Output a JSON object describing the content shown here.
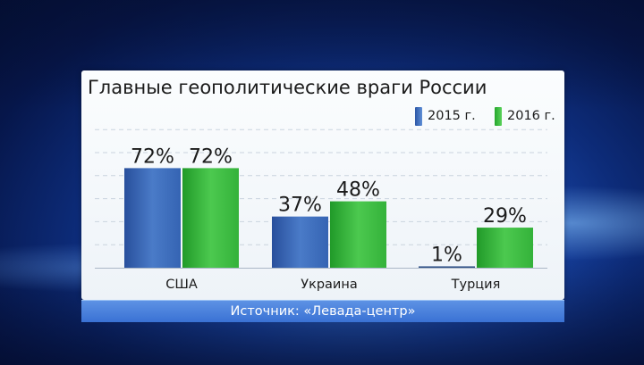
{
  "chart_data": {
    "type": "bar",
    "title": "Главные геополитические враги России",
    "categories": [
      "США",
      "Украина",
      "Турция"
    ],
    "series": [
      {
        "name": "2015 г.",
        "values": [
          72,
          37,
          1
        ],
        "color": "#3a66b8"
      },
      {
        "name": "2016 г.",
        "values": [
          72,
          48,
          29
        ],
        "color": "#3cbb43"
      }
    ],
    "value_suffix": "%",
    "ylim": [
      0,
      100
    ],
    "grid": true,
    "legend_position": "top-right"
  },
  "source": "Источник: «Левада-центр»"
}
